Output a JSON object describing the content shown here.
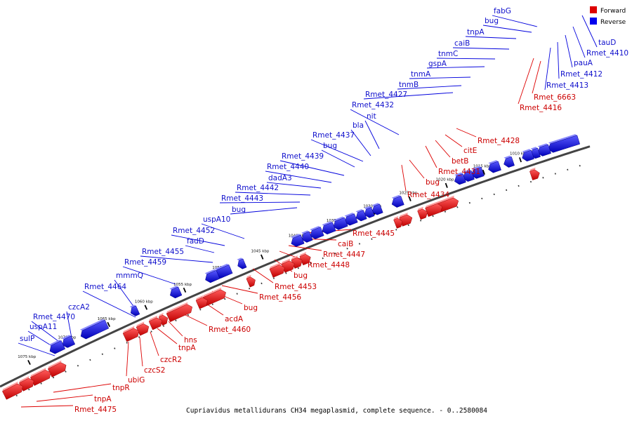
{
  "caption": "Cupriavidus metallidurans CH34 megaplasmid, complete sequence. - 0..2580084",
  "legend": {
    "forward_label": "Forward",
    "reverse_label": "Reverse",
    "forward_color": "#dd0000",
    "reverse_color": "#0000ee"
  },
  "ticks": [
    "1010 kbp",
    "1015 kbp",
    "1020 kbp",
    "1025 kbp",
    "1030 kbp",
    "1035 kbp",
    "1040 kbp",
    "1045 kbp",
    "1050 kbp",
    "1055 kbp",
    "1060 kbp",
    "1065 kbp",
    "1070 kbp",
    "1075 kbp"
  ],
  "reverse_genes": [
    "fabG",
    "bug",
    "tnpA",
    "caiB",
    "tnmC",
    "gspA",
    "tnmA",
    "tnmB",
    "Rmet_4427",
    "Rmet_4432",
    "nit",
    "bla",
    "Rmet_4437",
    "bug",
    "Rmet_4439",
    "Rmet_4440",
    "dadA3",
    "Rmet_4442",
    "Rmet_4443",
    "bug",
    "uspA10",
    "Rmet_4452",
    "fadD",
    "Rmet_4455",
    "Rmet_4459",
    "mmmQ",
    "Rmet_4464",
    "czcA2",
    "Rmet_4470",
    "uspA11",
    "sulP",
    "tauD",
    "Rmet_4410",
    "pauA",
    "Rmet_4412",
    "Rmet_4413"
  ],
  "forward_genes": [
    "Rmet_6663",
    "Rmet_4416",
    "Rmet_4428",
    "citE",
    "betB",
    "Rmet_4431",
    "bug",
    "Rmet_4434",
    "Rmet_4445",
    "caiB",
    "Rmet_4447",
    "Rmet_4448",
    "bug",
    "Rmet_4453",
    "Rmet_4456",
    "bug",
    "acdA",
    "Rmet_4460",
    "hns",
    "tnpA",
    "czcR2",
    "czcS2",
    "ubiG",
    "tnpR",
    "tnpA",
    "Rmet_4475"
  ]
}
